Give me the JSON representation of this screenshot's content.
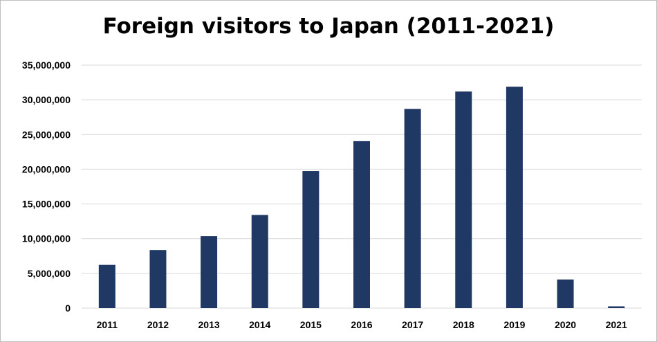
{
  "chart_data": {
    "type": "bar",
    "title": "Foreign visitors to Japan (2011-2021)",
    "xlabel": "",
    "ylabel": "",
    "categories": [
      "2011",
      "2012",
      "2013",
      "2014",
      "2015",
      "2016",
      "2017",
      "2018",
      "2019",
      "2020",
      "2021"
    ],
    "values": [
      6220000,
      8360000,
      10360000,
      13410000,
      19740000,
      24040000,
      28690000,
      31190000,
      31880000,
      4120000,
      250000
    ],
    "ylim": [
      0,
      35000000
    ],
    "yticks": [
      0,
      5000000,
      10000000,
      15000000,
      20000000,
      25000000,
      30000000,
      35000000
    ],
    "ytick_labels": [
      "0",
      "5,000,000",
      "10,000,000",
      "15,000,000",
      "20,000,000",
      "25,000,000",
      "30,000,000",
      "35,000,000"
    ],
    "grid": true,
    "legend": "none",
    "bar_color": "#203864",
    "grid_color": "#d9d9d9"
  }
}
